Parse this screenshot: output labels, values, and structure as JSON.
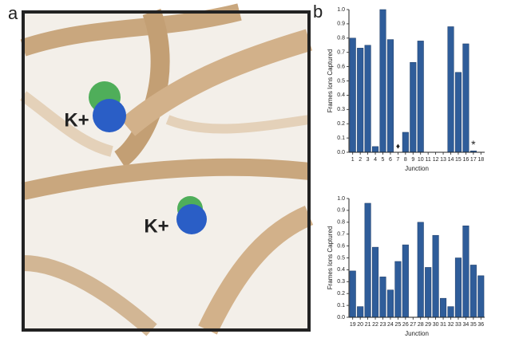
{
  "figure": {
    "panel_labels": [
      "a",
      "b"
    ],
    "ion_labels": [
      "K+",
      "K+"
    ]
  },
  "chart_data": [
    {
      "type": "bar",
      "color": "#2f5d9a",
      "categories": [
        "1",
        "2",
        "3",
        "4",
        "5",
        "6",
        "7",
        "8",
        "9",
        "10",
        "11",
        "12",
        "13",
        "14",
        "15",
        "16",
        "17",
        "18"
      ],
      "values": [
        0.8,
        0.73,
        0.75,
        0.04,
        1.0,
        0.79,
        0,
        0.14,
        0.63,
        0.78,
        0,
        0,
        0,
        0.88,
        0.56,
        0.76,
        0.01,
        0
      ],
      "xlabel": "Junction",
      "ylabel": "Frames Ions Captured",
      "ylim": [
        0,
        1.0
      ],
      "yticks": [
        {
          "value": 0,
          "label": "0.0"
        },
        0.1,
        0.2,
        0.3,
        0.4,
        0.5,
        0.6,
        0.7,
        0.8,
        0.9,
        {
          "value": 1.0,
          "label": "1.0"
        }
      ],
      "annotations": [
        {
          "label": "♦",
          "x": "7"
        },
        {
          "label": "*",
          "x": "17"
        }
      ]
    },
    {
      "type": "bar",
      "color": "#2f5d9a",
      "categories": [
        "19",
        "20",
        "21",
        "22",
        "23",
        "24",
        "25",
        "26",
        "27",
        "28",
        "29",
        "30",
        "31",
        "32",
        "33",
        "34",
        "35",
        "36"
      ],
      "values": [
        0.39,
        0.09,
        0.96,
        0.59,
        0.34,
        0.23,
        0.47,
        0.61,
        0,
        0.8,
        0.42,
        0.69,
        0.16,
        0.09,
        0.5,
        0.77,
        0.44,
        0.35
      ],
      "xlabel": "Junction",
      "ylabel": "Frames Ions Captured",
      "ylim": [
        0,
        1.0
      ],
      "yticks": [
        {
          "value": 0,
          "label": "0.0"
        },
        0.1,
        0.2,
        0.3,
        0.4,
        0.5,
        0.6,
        0.7,
        0.8,
        0.9,
        {
          "value": 1.0,
          "label": "1.0"
        }
      ]
    }
  ]
}
